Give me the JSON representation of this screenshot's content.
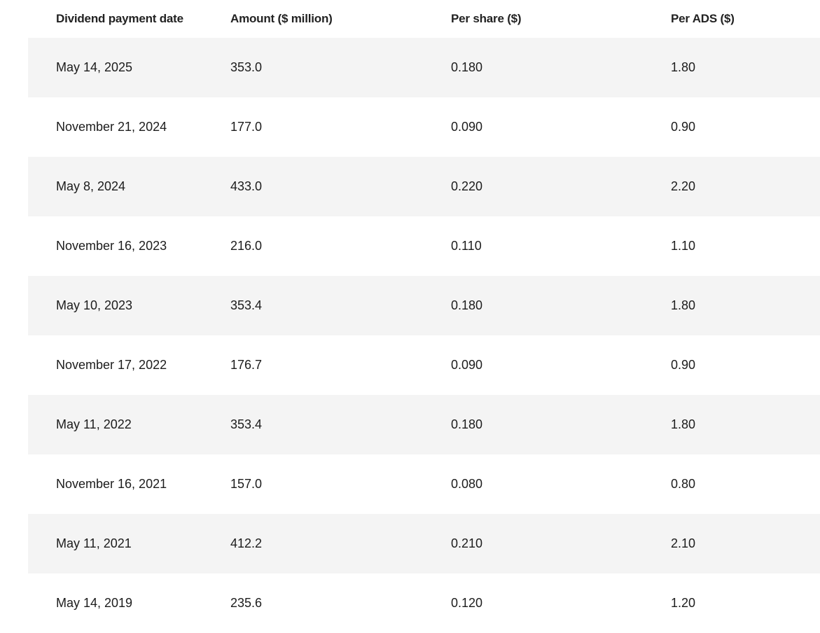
{
  "table": {
    "headers": [
      "Dividend payment date",
      "Amount ($ million)",
      "Per share ($)",
      "Per ADS ($)"
    ],
    "rows": [
      [
        "May 14, 2025",
        "353.0",
        "0.180",
        "1.80"
      ],
      [
        "November 21, 2024",
        "177.0",
        "0.090",
        "0.90"
      ],
      [
        "May 8, 2024",
        "433.0",
        "0.220",
        "2.20"
      ],
      [
        "November 16, 2023",
        "216.0",
        "0.110",
        "1.10"
      ],
      [
        "May 10, 2023",
        "353.4",
        "0.180",
        "1.80"
      ],
      [
        "November 17, 2022",
        "176.7",
        "0.090",
        "0.90"
      ],
      [
        "May 11, 2022",
        "353.4",
        "0.180",
        "1.80"
      ],
      [
        "November 16, 2021",
        "157.0",
        "0.080",
        "0.80"
      ],
      [
        "May 11, 2021",
        "412.2",
        "0.210",
        "2.10"
      ],
      [
        "May 14, 2019",
        "235.6",
        "0.120",
        "1.20"
      ]
    ]
  },
  "colors": {
    "stripe": "#f4f4f4",
    "text": "#1c1c1c"
  }
}
